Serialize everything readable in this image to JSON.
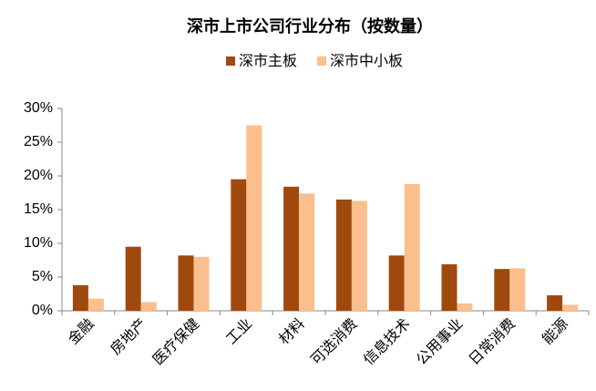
{
  "chart_data": {
    "type": "bar",
    "title": "深市上市公司行业分布（按数量）",
    "categories": [
      "金融",
      "房地产",
      "医疗保健",
      "工业",
      "材料",
      "可选消费",
      "信息技术",
      "公用事业",
      "日常消费",
      "能源"
    ],
    "series": [
      {
        "name": "深市主板",
        "color": "#a0490f",
        "values": [
          3.8,
          9.5,
          8.2,
          19.5,
          18.4,
          16.5,
          8.2,
          6.9,
          6.2,
          2.3
        ]
      },
      {
        "name": "深市中小板",
        "color": "#fbbf8e",
        "values": [
          1.8,
          1.3,
          8.0,
          27.5,
          17.4,
          16.3,
          18.8,
          1.1,
          6.3,
          0.9
        ]
      }
    ],
    "ylim": [
      0,
      30
    ],
    "yticks": [
      {
        "value": 0,
        "label": "0%"
      },
      {
        "value": 5,
        "label": "5%"
      },
      {
        "value": 10,
        "label": "10%"
      },
      {
        "value": 15,
        "label": "15%"
      },
      {
        "value": 20,
        "label": "20%"
      },
      {
        "value": 25,
        "label": "25%"
      },
      {
        "value": 30,
        "label": "30%"
      }
    ],
    "legend": "top",
    "grid": false
  }
}
